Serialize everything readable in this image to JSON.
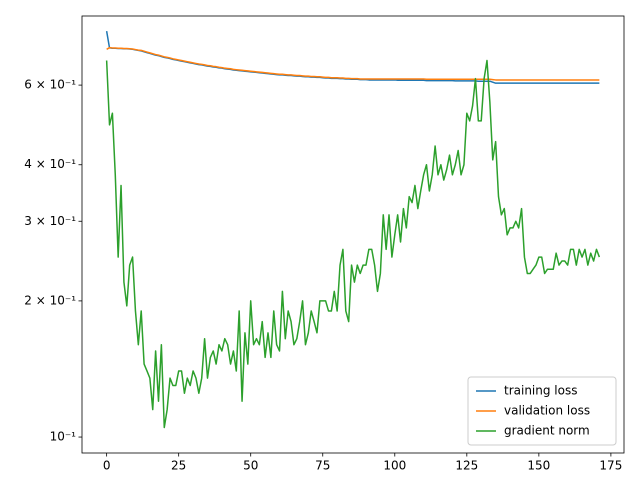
{
  "chart_data": {
    "type": "line",
    "yscale": "log",
    "legend": "lower right",
    "x": [
      0,
      1,
      2,
      3,
      4,
      5,
      6,
      7,
      8,
      9,
      10,
      11,
      12,
      13,
      14,
      15,
      16,
      17,
      18,
      19,
      20,
      21,
      22,
      23,
      24,
      25,
      26,
      27,
      28,
      29,
      30,
      31,
      32,
      33,
      34,
      35,
      36,
      37,
      38,
      39,
      40,
      41,
      42,
      43,
      44,
      45,
      46,
      47,
      48,
      49,
      50,
      51,
      52,
      53,
      54,
      55,
      56,
      57,
      58,
      59,
      60,
      61,
      62,
      63,
      64,
      65,
      66,
      67,
      68,
      69,
      70,
      71,
      72,
      73,
      74,
      75,
      76,
      77,
      78,
      79,
      80,
      81,
      82,
      83,
      84,
      85,
      86,
      87,
      88,
      89,
      90,
      91,
      92,
      93,
      94,
      95,
      96,
      97,
      98,
      99,
      100,
      101,
      102,
      103,
      104,
      105,
      106,
      107,
      108,
      109,
      110,
      111,
      112,
      113,
      114,
      115,
      116,
      117,
      118,
      119,
      120,
      121,
      122,
      123,
      124,
      125,
      126,
      127,
      128,
      129,
      130,
      131,
      132,
      133,
      134,
      135,
      136,
      137,
      138,
      139,
      140,
      141,
      142,
      143,
      144,
      145,
      146,
      147,
      148,
      149,
      150,
      151,
      152,
      153,
      154,
      155,
      156,
      157,
      158,
      159,
      160,
      161,
      162,
      163,
      164,
      165,
      166,
      167,
      168,
      169,
      170,
      171
    ],
    "series": [
      {
        "name": "training loss",
        "color": "#1f77b4",
        "values": [
          0.79,
          0.725,
          0.724,
          0.724,
          0.723,
          0.723,
          0.722,
          0.722,
          0.721,
          0.72,
          0.718,
          0.716,
          0.714,
          0.711,
          0.708,
          0.705,
          0.702,
          0.699,
          0.697,
          0.694,
          0.691,
          0.689,
          0.687,
          0.684,
          0.682,
          0.68,
          0.678,
          0.676,
          0.674,
          0.672,
          0.67,
          0.668,
          0.666,
          0.665,
          0.663,
          0.661,
          0.66,
          0.658,
          0.657,
          0.655,
          0.654,
          0.652,
          0.651,
          0.65,
          0.648,
          0.647,
          0.646,
          0.645,
          0.644,
          0.643,
          0.642,
          0.641,
          0.64,
          0.639,
          0.638,
          0.637,
          0.636,
          0.635,
          0.634,
          0.633,
          0.632,
          0.632,
          0.631,
          0.63,
          0.63,
          0.629,
          0.628,
          0.628,
          0.627,
          0.626,
          0.626,
          0.625,
          0.625,
          0.624,
          0.624,
          0.623,
          0.622,
          0.622,
          0.621,
          0.621,
          0.621,
          0.62,
          0.62,
          0.619,
          0.619,
          0.618,
          0.618,
          0.618,
          0.617,
          0.617,
          0.617,
          0.616,
          0.616,
          0.616,
          0.616,
          0.616,
          0.616,
          0.616,
          0.616,
          0.616,
          0.616,
          0.615,
          0.615,
          0.615,
          0.615,
          0.615,
          0.615,
          0.615,
          0.615,
          0.615,
          0.615,
          0.614,
          0.614,
          0.614,
          0.614,
          0.614,
          0.614,
          0.614,
          0.614,
          0.614,
          0.614,
          0.613,
          0.613,
          0.613,
          0.613,
          0.613,
          0.613,
          0.613,
          0.613,
          0.612,
          0.612,
          0.612,
          0.612,
          0.612,
          0.609,
          0.606,
          0.606,
          0.606,
          0.606,
          0.606,
          0.606,
          0.606,
          0.606,
          0.606,
          0.606,
          0.606,
          0.606,
          0.606,
          0.606,
          0.606,
          0.606,
          0.606,
          0.606,
          0.606,
          0.606,
          0.606,
          0.606,
          0.606,
          0.606,
          0.606,
          0.606,
          0.606,
          0.606,
          0.606,
          0.606,
          0.606,
          0.606,
          0.606,
          0.606,
          0.606,
          0.606,
          0.606
        ]
      },
      {
        "name": "validation loss",
        "color": "#ff7f0e",
        "values": [
          0.72,
          0.726,
          0.725,
          0.725,
          0.724,
          0.724,
          0.723,
          0.723,
          0.722,
          0.721,
          0.719,
          0.717,
          0.716,
          0.713,
          0.71,
          0.707,
          0.704,
          0.701,
          0.699,
          0.696,
          0.693,
          0.691,
          0.689,
          0.686,
          0.684,
          0.682,
          0.68,
          0.678,
          0.676,
          0.674,
          0.672,
          0.67,
          0.668,
          0.667,
          0.665,
          0.663,
          0.662,
          0.66,
          0.659,
          0.657,
          0.656,
          0.654,
          0.653,
          0.652,
          0.65,
          0.649,
          0.648,
          0.647,
          0.646,
          0.645,
          0.644,
          0.643,
          0.642,
          0.641,
          0.64,
          0.639,
          0.638,
          0.637,
          0.636,
          0.635,
          0.634,
          0.634,
          0.633,
          0.632,
          0.632,
          0.631,
          0.63,
          0.63,
          0.629,
          0.628,
          0.628,
          0.627,
          0.627,
          0.626,
          0.626,
          0.625,
          0.624,
          0.624,
          0.623,
          0.623,
          0.623,
          0.622,
          0.622,
          0.621,
          0.621,
          0.62,
          0.62,
          0.62,
          0.619,
          0.619,
          0.619,
          0.619,
          0.619,
          0.619,
          0.619,
          0.619,
          0.619,
          0.619,
          0.619,
          0.619,
          0.619,
          0.619,
          0.619,
          0.619,
          0.619,
          0.619,
          0.619,
          0.619,
          0.619,
          0.619,
          0.619,
          0.618,
          0.618,
          0.618,
          0.618,
          0.618,
          0.618,
          0.618,
          0.618,
          0.618,
          0.618,
          0.618,
          0.618,
          0.618,
          0.618,
          0.618,
          0.618,
          0.618,
          0.618,
          0.618,
          0.618,
          0.618,
          0.618,
          0.618,
          0.617,
          0.616,
          0.616,
          0.616,
          0.616,
          0.616,
          0.616,
          0.616,
          0.616,
          0.616,
          0.616,
          0.616,
          0.616,
          0.616,
          0.616,
          0.616,
          0.616,
          0.616,
          0.616,
          0.616,
          0.616,
          0.616,
          0.616,
          0.616,
          0.616,
          0.616,
          0.616,
          0.616,
          0.616,
          0.616,
          0.616,
          0.616,
          0.616,
          0.616,
          0.616,
          0.616,
          0.616,
          0.616
        ]
      },
      {
        "name": "gradient norm",
        "color": "#2ca02c",
        "values": [
          0.68,
          0.49,
          0.52,
          0.38,
          0.25,
          0.36,
          0.22,
          0.195,
          0.24,
          0.25,
          0.19,
          0.16,
          0.19,
          0.145,
          0.14,
          0.135,
          0.115,
          0.155,
          0.12,
          0.16,
          0.105,
          0.115,
          0.135,
          0.13,
          0.13,
          0.14,
          0.14,
          0.125,
          0.135,
          0.13,
          0.14,
          0.135,
          0.125,
          0.135,
          0.165,
          0.135,
          0.15,
          0.155,
          0.145,
          0.16,
          0.155,
          0.165,
          0.16,
          0.145,
          0.155,
          0.14,
          0.19,
          0.12,
          0.17,
          0.145,
          0.2,
          0.16,
          0.165,
          0.16,
          0.18,
          0.15,
          0.17,
          0.15,
          0.19,
          0.16,
          0.155,
          0.21,
          0.165,
          0.19,
          0.18,
          0.16,
          0.165,
          0.18,
          0.2,
          0.16,
          0.17,
          0.19,
          0.18,
          0.17,
          0.2,
          0.2,
          0.2,
          0.19,
          0.19,
          0.21,
          0.19,
          0.24,
          0.26,
          0.19,
          0.18,
          0.24,
          0.22,
          0.24,
          0.23,
          0.24,
          0.24,
          0.26,
          0.26,
          0.24,
          0.21,
          0.23,
          0.31,
          0.26,
          0.31,
          0.25,
          0.28,
          0.31,
          0.27,
          0.32,
          0.29,
          0.34,
          0.33,
          0.36,
          0.32,
          0.35,
          0.38,
          0.4,
          0.35,
          0.38,
          0.44,
          0.38,
          0.4,
          0.37,
          0.39,
          0.42,
          0.38,
          0.4,
          0.43,
          0.38,
          0.4,
          0.52,
          0.5,
          0.54,
          0.62,
          0.5,
          0.5,
          0.62,
          0.68,
          0.55,
          0.41,
          0.45,
          0.34,
          0.31,
          0.32,
          0.28,
          0.29,
          0.29,
          0.3,
          0.29,
          0.32,
          0.25,
          0.23,
          0.23,
          0.235,
          0.24,
          0.25,
          0.25,
          0.23,
          0.235,
          0.235,
          0.235,
          0.255,
          0.24,
          0.245,
          0.245,
          0.24,
          0.26,
          0.26,
          0.24,
          0.26,
          0.25,
          0.26,
          0.24,
          0.255,
          0.245,
          0.26,
          0.25
        ]
      }
    ],
    "xlim": [
      -8.55,
      179.55
    ],
    "xticks": [
      0,
      25,
      50,
      75,
      100,
      125,
      150,
      175
    ],
    "ylim": [
      0.0922,
      0.853
    ],
    "yticks": [
      {
        "value": 0.1,
        "label": "10⁻¹"
      },
      {
        "value": 0.2,
        "label": "2 × 10⁻¹"
      },
      {
        "value": 0.3,
        "label": "3 × 10⁻¹"
      },
      {
        "value": 0.4,
        "label": "4 × 10⁻¹"
      },
      {
        "value": 0.6,
        "label": "6 × 10⁻¹"
      }
    ]
  }
}
